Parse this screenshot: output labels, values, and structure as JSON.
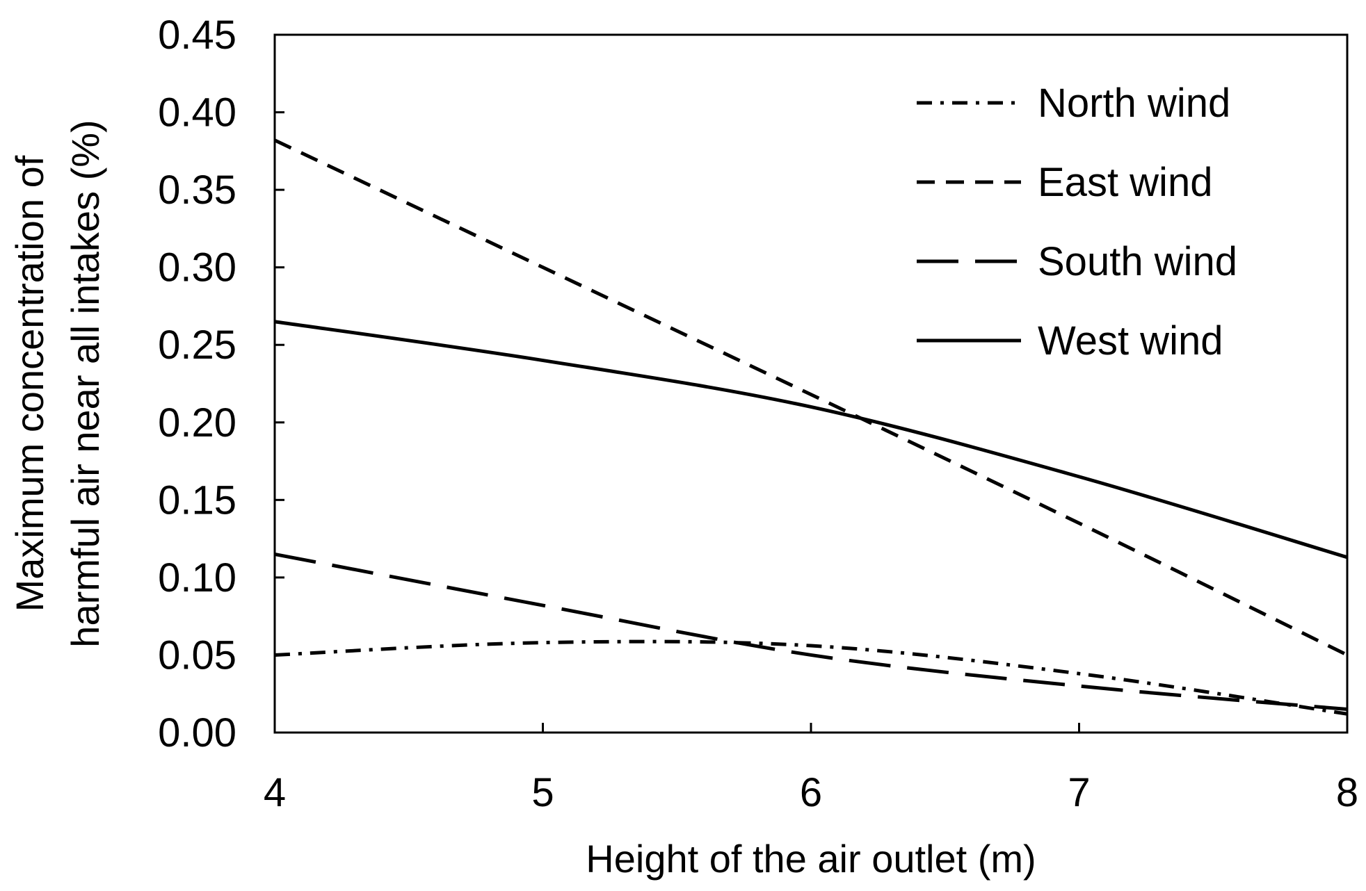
{
  "chart_data": {
    "type": "line",
    "title": "",
    "xlabel": "Height of the air outlet (m)",
    "ylabel_lines": [
      "Maximum  concentration of",
      "harmful air near all intakes (%)"
    ],
    "xlim": [
      4,
      8
    ],
    "ylim": [
      0,
      0.45
    ],
    "x_ticks": [
      "4",
      "5",
      "6",
      "7",
      "8"
    ],
    "y_ticks": [
      "0.00",
      "0.05",
      "0.10",
      "0.15",
      "0.20",
      "0.25",
      "0.30",
      "0.35",
      "0.40",
      "0.45"
    ],
    "grid": false,
    "legend_position": "top-right",
    "line_color": "#000000",
    "x": [
      4,
      5,
      6,
      7,
      8
    ],
    "series": [
      {
        "name": "North wind",
        "style": "dash-dot",
        "values": [
          0.05,
          0.058,
          0.056,
          0.038,
          0.012
        ]
      },
      {
        "name": "East wind",
        "style": "short-dash",
        "values": [
          0.382,
          0.3,
          0.218,
          0.135,
          0.05
        ]
      },
      {
        "name": "South wind",
        "style": "long-dash",
        "values": [
          0.115,
          0.082,
          0.05,
          0.03,
          0.015
        ]
      },
      {
        "name": "West wind",
        "style": "solid",
        "values": [
          0.265,
          0.24,
          0.21,
          0.165,
          0.113
        ]
      }
    ]
  }
}
